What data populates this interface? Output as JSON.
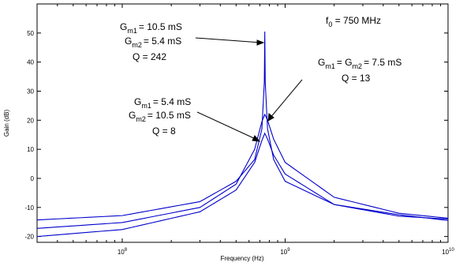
{
  "chart_data": {
    "type": "line",
    "title": "",
    "xlabel": "Frequency (Hz)",
    "ylabel": "Gain (dB)",
    "x_scale": "log",
    "xlim": [
      30000000,
      10000000000
    ],
    "ylim": [
      -22,
      60
    ],
    "x_ticks": [
      {
        "value": 100000000,
        "base": "10",
        "exp": "8"
      },
      {
        "value": 1000000000,
        "base": "10",
        "exp": "9"
      },
      {
        "value": 10000000000,
        "base": "10",
        "exp": "10"
      }
    ],
    "y_ticks": [
      -20,
      -10,
      0,
      10,
      20,
      30,
      40,
      50
    ],
    "grid": false,
    "line_color": "#0000cc",
    "series": [
      {
        "gm1": "10.5 mS",
        "gm2": "5.4 mS",
        "Q": 242,
        "x": [
          30000000,
          100000000,
          300000000,
          500000000,
          650000000,
          720000000,
          745000000,
          750000000,
          755000000,
          780000000,
          850000000,
          1000000000,
          2000000000,
          5000000000,
          10000000000
        ],
        "y": [
          -14.3,
          -12.8,
          -8.0,
          -1.0,
          6.5,
          17.0,
          33.0,
          50.5,
          33.0,
          17.0,
          6.5,
          -1.0,
          -9.0,
          -12.5,
          -14.5
        ]
      },
      {
        "gm1": "7.5 mS",
        "gm2": "7.5 mS",
        "Q": 13,
        "x": [
          30000000,
          100000000,
          300000000,
          500000000,
          650000000,
          720000000,
          750000000,
          780000000,
          850000000,
          1000000000,
          2000000000,
          5000000000,
          10000000000
        ],
        "y": [
          -17.2,
          -15.2,
          -10.0,
          -2.0,
          10.0,
          19.5,
          22.0,
          20.0,
          13.5,
          5.5,
          -6.5,
          -12.0,
          -13.7
        ]
      },
      {
        "gm1": "5.4 mS",
        "gm2": "10.5 mS",
        "Q": 8,
        "x": [
          30000000,
          100000000,
          300000000,
          500000000,
          650000000,
          720000000,
          750000000,
          780000000,
          850000000,
          1000000000,
          2000000000,
          5000000000,
          10000000000
        ],
        "y": [
          -20.0,
          -17.6,
          -11.5,
          -4.0,
          5.5,
          13.0,
          15.5,
          13.5,
          8.0,
          1.5,
          -9.0,
          -13.0,
          -14.0
        ]
      }
    ],
    "annotations": {
      "f0": {
        "sym": "f",
        "sub": "0",
        "rest": " = 750 MHz"
      },
      "curve1": {
        "line1": "= 10.5 mS",
        "line2": "= 5.4 mS",
        "line3": "Q = 242"
      },
      "curve2": {
        "line1": "= G",
        "line1_end": "= 7.5 mS",
        "line3": "Q = 13"
      },
      "curve3": {
        "line1": "= 5.4 mS",
        "line2": "= 10.5 mS",
        "line3": "Q = 8"
      },
      "g": "G",
      "sub1": "m1",
      "sub2": "m2"
    }
  }
}
